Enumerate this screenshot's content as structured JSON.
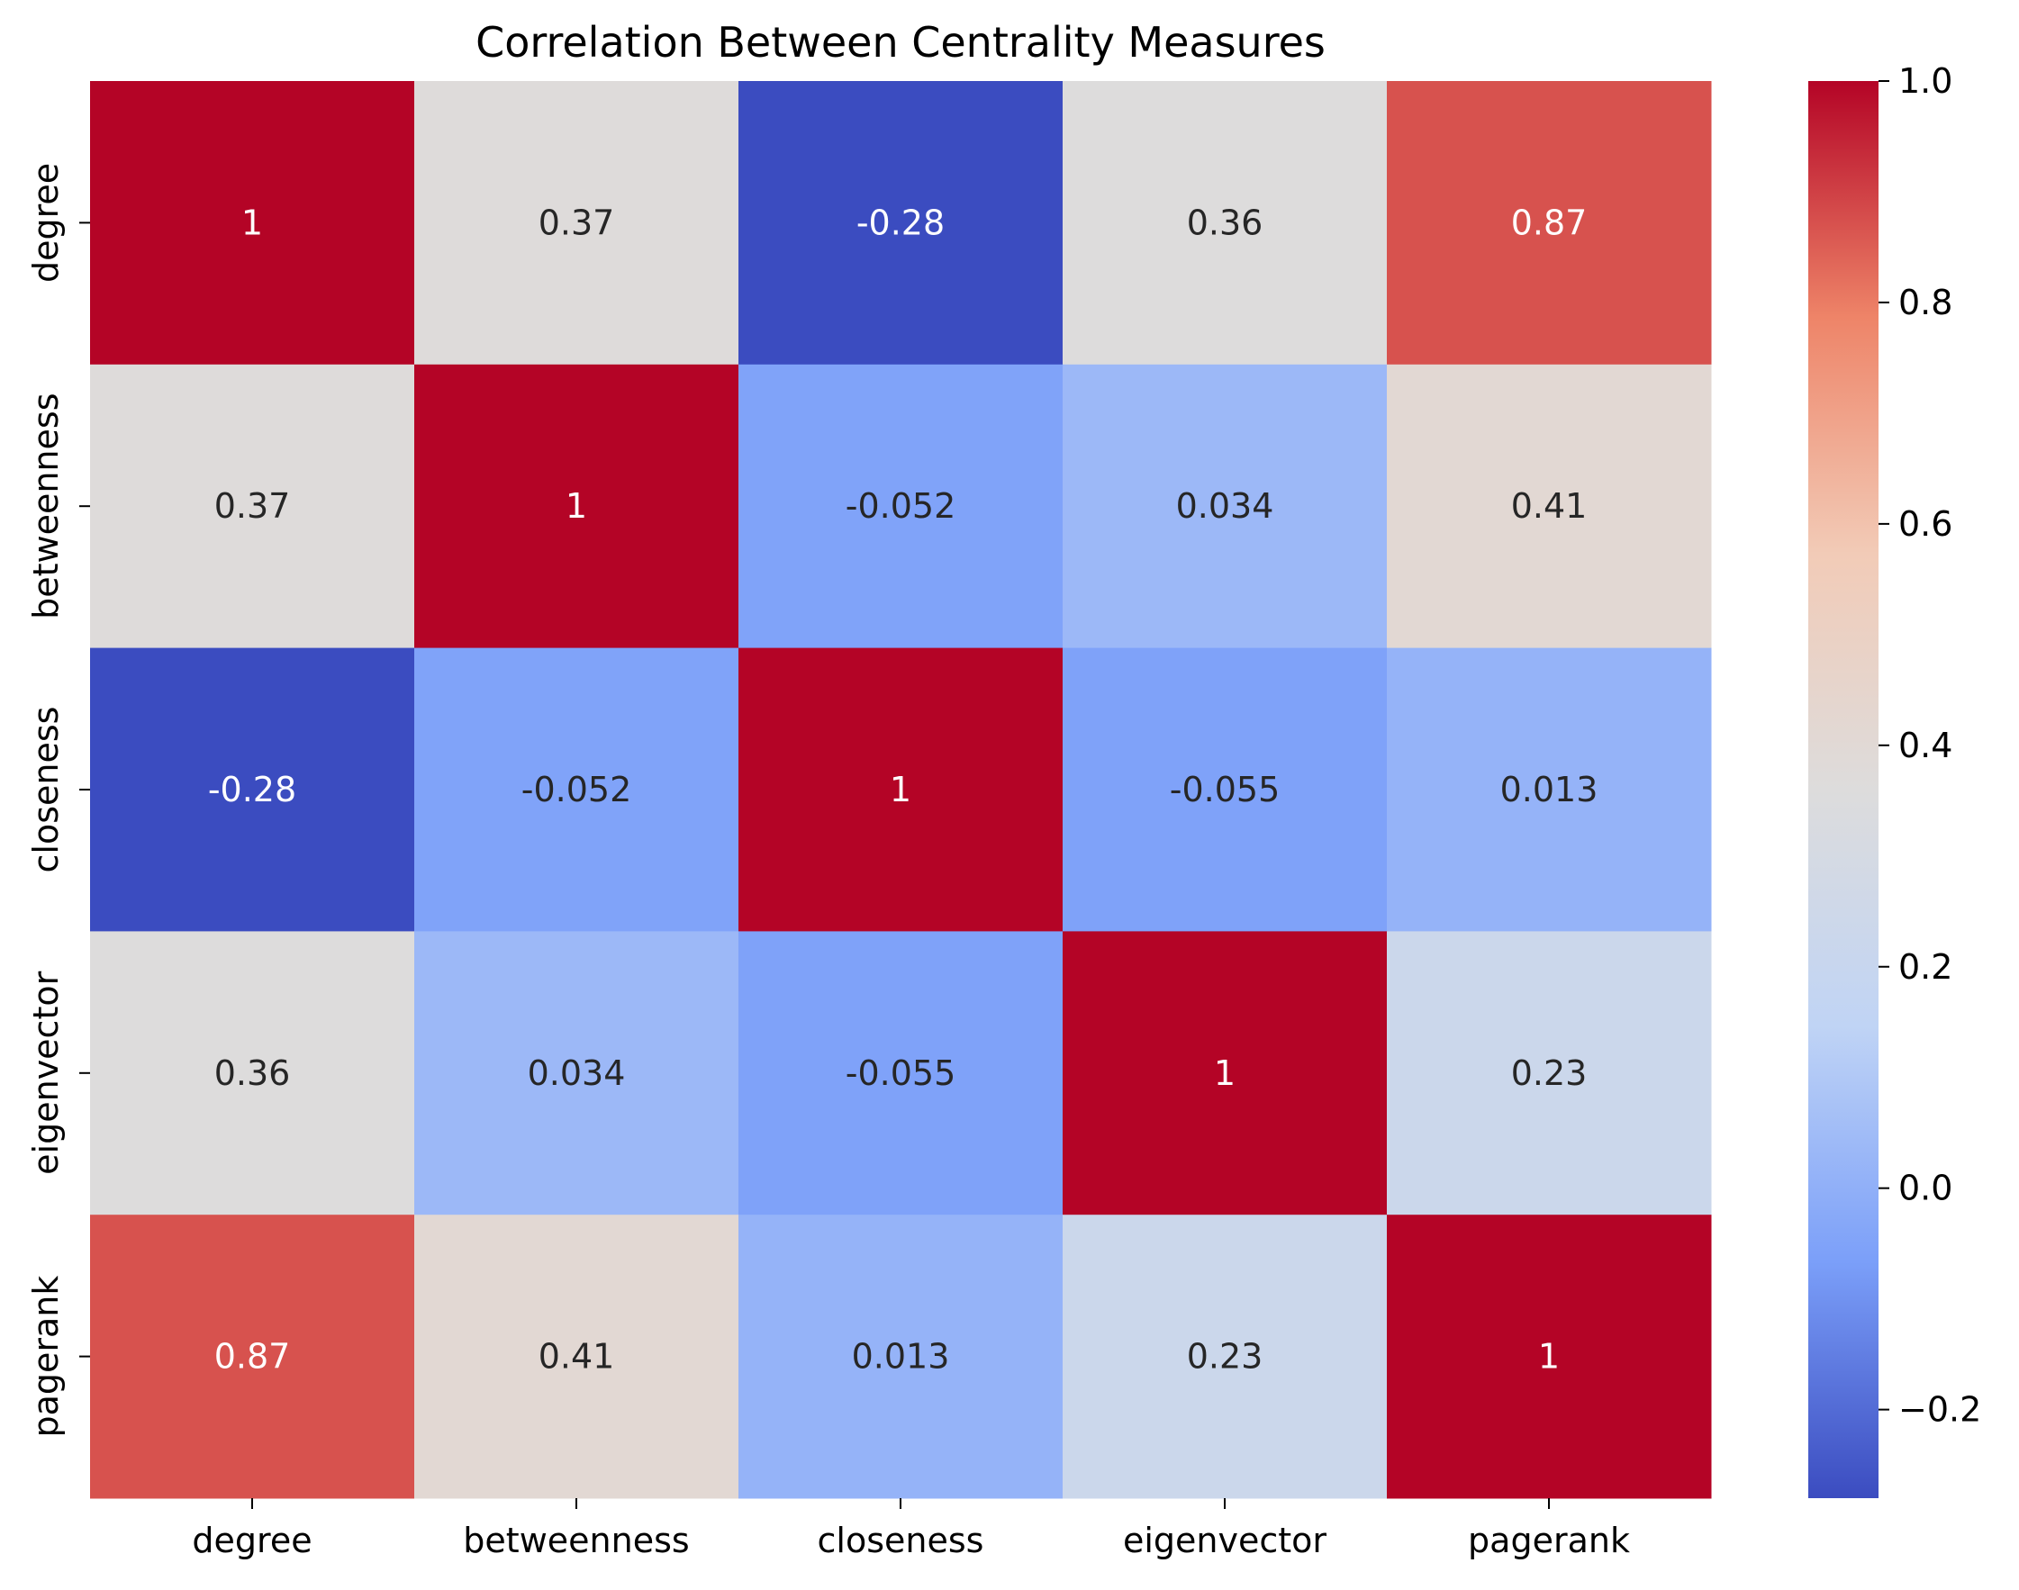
{
  "chart_data": {
    "type": "heatmap",
    "title": "Correlation Between Centrality Measures",
    "xlabel": "",
    "ylabel": "",
    "x_categories": [
      "degree",
      "betweenness",
      "closeness",
      "eigenvector",
      "pagerank"
    ],
    "y_categories": [
      "degree",
      "betweenness",
      "closeness",
      "eigenvector",
      "pagerank"
    ],
    "values": [
      [
        1.0,
        0.37,
        -0.28,
        0.36,
        0.87
      ],
      [
        0.37,
        1.0,
        -0.052,
        0.034,
        0.41
      ],
      [
        -0.28,
        -0.052,
        1.0,
        -0.055,
        0.013
      ],
      [
        0.36,
        0.034,
        -0.055,
        1.0,
        0.23
      ],
      [
        0.87,
        0.41,
        0.013,
        0.23,
        1.0
      ]
    ],
    "annotations": [
      [
        "1",
        "0.37",
        "-0.28",
        "0.36",
        "0.87"
      ],
      [
        "0.37",
        "1",
        "-0.052",
        "0.034",
        "0.41"
      ],
      [
        "-0.28",
        "-0.052",
        "1",
        "-0.055",
        "0.013"
      ],
      [
        "0.36",
        "0.034",
        "-0.055",
        "1",
        "0.23"
      ],
      [
        "0.87",
        "0.41",
        "0.013",
        "0.23",
        "1"
      ]
    ],
    "colormap": "coolwarm",
    "colormap_stops": [
      "#3b4cc0",
      "#7b9ff9",
      "#c0d4f5",
      "#dddcdc",
      "#f2cbb7",
      "#ee8468",
      "#b40426"
    ],
    "color_range": [
      -0.28,
      1.0
    ],
    "colorbar": {
      "ticks": [
        -0.2,
        0.0,
        0.2,
        0.4,
        0.6,
        0.8,
        1.0
      ],
      "tick_labels": [
        "−0.2",
        "0.0",
        "0.2",
        "0.4",
        "0.6",
        "0.8",
        "1.0"
      ],
      "placement": "right"
    },
    "grid": false,
    "legend": "colorbar-right"
  }
}
